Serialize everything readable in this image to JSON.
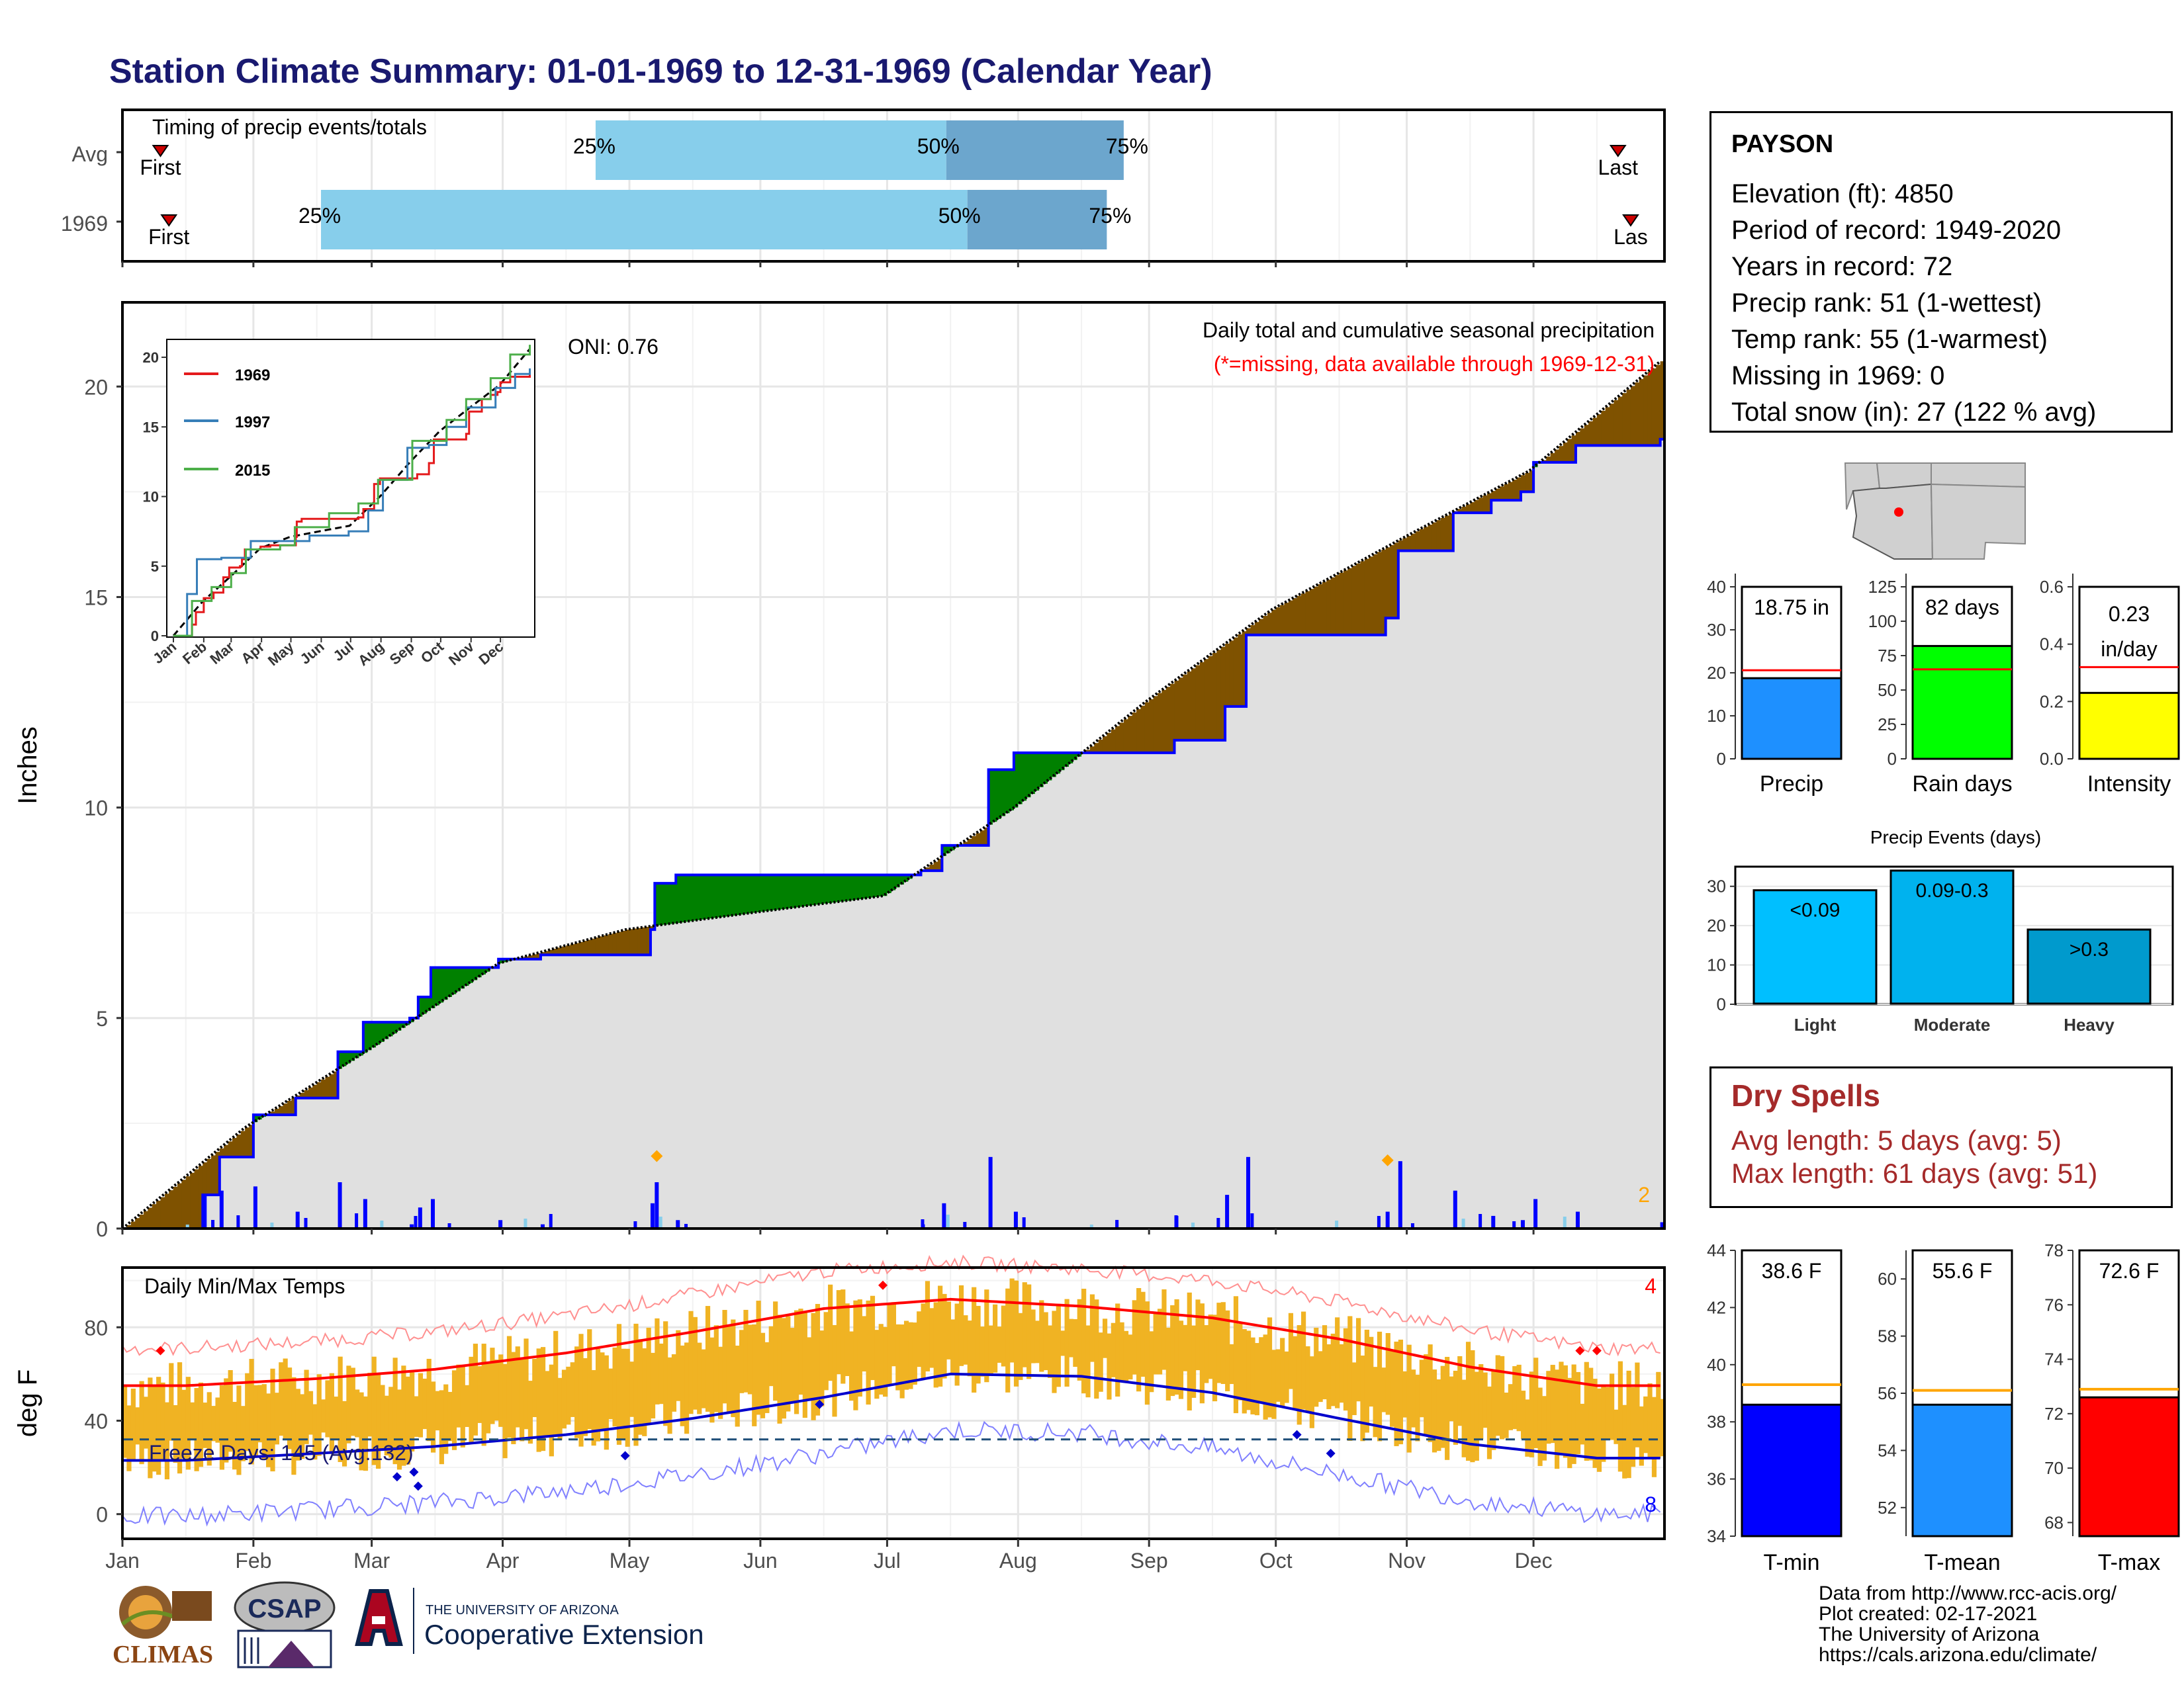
{
  "title": "Station Climate Summary: 01-01-1969 to 12-31-1969 (Calendar Year)",
  "months": [
    "Jan",
    "Feb",
    "Mar",
    "Apr",
    "May",
    "Jun",
    "Jul",
    "Aug",
    "Sep",
    "Oct",
    "Nov",
    "Dec"
  ],
  "timing": {
    "title": "Timing of precip events/totals",
    "rows": [
      "Avg",
      "1969"
    ],
    "first_label": "First",
    "last_label": "Last",
    "last_label_cut": "Las",
    "pct_labels": [
      "25%",
      "50%",
      "75%"
    ]
  },
  "precip_panel": {
    "ylabel": "Inches",
    "oni": "ONI: 0.76",
    "subtitle": "Daily total and cumulative seasonal precipitation",
    "missing_note": "(*=missing, data available through 1969-12-31)",
    "corner_count": "2",
    "yticks": [
      "0",
      "5",
      "10",
      "15",
      "20"
    ],
    "inset_legend": [
      "1969",
      "1997",
      "2015"
    ],
    "inset_yticks": [
      "0",
      "5",
      "10",
      "15",
      "20"
    ]
  },
  "temp_panel": {
    "title": "Daily Min/Max Temps",
    "ylabel": "deg F",
    "freeze": "Freeze Days: 145 (Avg:132)",
    "corner_top": "4",
    "corner_bottom": "8",
    "yticks": [
      "0",
      "40",
      "80"
    ]
  },
  "info": {
    "station": "PAYSON",
    "lines": [
      "Elevation (ft): 4850",
      "Period of record: 1949-2020",
      "Years in record: 72",
      "Precip rank: 51 (1-wettest)",
      "Temp rank: 55 (1-warmest)",
      "Missing in 1969: 0",
      "Total snow (in): 27 (122 % avg)"
    ]
  },
  "mini_bars": {
    "precip": {
      "label": "Precip",
      "value_text": "18.75 in",
      "value": 18.75,
      "avg": 20.6,
      "max": 40,
      "ticks": [
        "0",
        "10",
        "20",
        "30",
        "40"
      ],
      "color": "#1E90FF"
    },
    "rain_days": {
      "label": "Rain days",
      "value_text": "82 days",
      "value": 82,
      "avg": 65,
      "max": 125,
      "ticks": [
        "0",
        "25",
        "50",
        "75",
        "100",
        "125"
      ],
      "color": "#00FF00"
    },
    "intensity": {
      "label": "Intensity",
      "value_text1": "0.23",
      "value_text2": "in/day",
      "value": 0.23,
      "avg": 0.32,
      "max": 0.6,
      "ticks": [
        "0.0",
        "0.2",
        "0.4",
        "0.6"
      ],
      "color": "#FFFF00"
    }
  },
  "events": {
    "title": "Precip Events (days)",
    "categories": [
      "Light",
      "Moderate",
      "Heavy"
    ],
    "bar_labels": [
      "<0.09",
      "0.09-0.3",
      ">0.3"
    ],
    "values": [
      29,
      34,
      19
    ],
    "ticks": [
      "0",
      "10",
      "20",
      "30"
    ],
    "colors": [
      "#00BFFF",
      "#00B2EE",
      "#009ACD"
    ]
  },
  "dry_spells": {
    "title": "Dry Spells",
    "avg": "Avg length: 5 days (avg: 5)",
    "max": "Max length: 61 days (avg: 51)"
  },
  "temp_bars": {
    "tmin": {
      "label": "T-min",
      "value_text": "38.6 F",
      "value": 38.6,
      "avg": 39.3,
      "min": 34,
      "max": 44,
      "ticks": [
        "34",
        "36",
        "38",
        "40",
        "42",
        "44"
      ],
      "color": "#0000FF"
    },
    "tmean": {
      "label": "T-mean",
      "value_text": "55.6 F",
      "value": 55.6,
      "avg": 56.1,
      "min": 51,
      "max": 61,
      "ticks": [
        "52",
        "54",
        "56",
        "58",
        "60"
      ],
      "color": "#1E90FF"
    },
    "tmax": {
      "label": "T-max",
      "value_text": "72.6 F",
      "value": 72.6,
      "avg": 72.9,
      "min": 67.5,
      "max": 78,
      "ticks": [
        "68",
        "70",
        "72",
        "74",
        "76",
        "78"
      ],
      "color": "#FF0000"
    }
  },
  "credits": [
    "Data from http://www.rcc-acis.org/",
    "Plot created: 02-17-2021",
    "The University of Arizona",
    "https://cals.arizona.edu/climate/"
  ],
  "logos": {
    "climas": "CLIMAS",
    "csap": "CSAP",
    "ua_small": "THE UNIVERSITY OF ARIZONA",
    "ua_big": "Cooperative Extension"
  },
  "chart_data": [
    {
      "type": "bar",
      "title": "Timing of precip events/totals",
      "series": [
        {
          "name": "Avg",
          "first_doy": 10,
          "q25_doy": 113,
          "q50_doy": 196,
          "q75_doy": 238,
          "last_doy": 355
        },
        {
          "name": "1969",
          "first_doy": 12,
          "q25_doy": 48,
          "q50_doy": 201,
          "q75_doy": 234,
          "last_doy": 358
        }
      ]
    },
    {
      "type": "area",
      "title": "Daily total and cumulative seasonal precipitation",
      "ylabel": "Inches",
      "ylim": [
        0,
        22
      ],
      "cumulative_1969": [
        [
          1,
          0
        ],
        [
          20,
          0.8
        ],
        [
          24,
          1.7
        ],
        [
          32,
          2.7
        ],
        [
          42,
          3.1
        ],
        [
          52,
          4.2
        ],
        [
          58,
          4.9
        ],
        [
          69,
          5.0
        ],
        [
          71,
          5.5
        ],
        [
          74,
          6.2
        ],
        [
          90,
          6.4
        ],
        [
          100,
          6.5
        ],
        [
          126,
          7.1
        ],
        [
          127,
          8.2
        ],
        [
          132,
          8.4
        ],
        [
          190,
          8.5
        ],
        [
          195,
          9.1
        ],
        [
          206,
          10.9
        ],
        [
          212,
          11.3
        ],
        [
          250,
          11.6
        ],
        [
          262,
          12.4
        ],
        [
          267,
          14.1
        ],
        [
          300,
          14.5
        ],
        [
          303,
          16.1
        ],
        [
          316,
          17.0
        ],
        [
          325,
          17.3
        ],
        [
          332,
          17.5
        ],
        [
          335,
          18.2
        ],
        [
          345,
          18.6
        ],
        [
          365,
          18.75
        ]
      ],
      "average_cumulative": [
        [
          1,
          0
        ],
        [
          30,
          2.4
        ],
        [
          60,
          4.3
        ],
        [
          90,
          6.3
        ],
        [
          120,
          7.1
        ],
        [
          150,
          7.5
        ],
        [
          181,
          7.9
        ],
        [
          212,
          10.0
        ],
        [
          243,
          12.5
        ],
        [
          273,
          14.7
        ],
        [
          304,
          16.4
        ],
        [
          334,
          18.0
        ],
        [
          365,
          20.6
        ]
      ],
      "oni": 0.76
    },
    {
      "type": "line",
      "title": "Daily Min/Max Temps",
      "ylabel": "deg F",
      "ylim": [
        -10,
        105
      ],
      "avg_max_monthly": [
        55,
        58,
        62,
        69,
        78,
        88,
        92,
        89,
        84,
        75,
        63,
        55
      ],
      "avg_min_monthly": [
        23,
        26,
        29,
        34,
        41,
        50,
        60,
        59,
        52,
        41,
        30,
        24
      ],
      "freeze_threshold": 32,
      "freeze_days": 145,
      "freeze_avg": 132
    },
    {
      "type": "bar",
      "title": "Precip Events (days)",
      "categories": [
        "Light",
        "Moderate",
        "Heavy"
      ],
      "values": [
        29,
        34,
        19
      ]
    }
  ]
}
